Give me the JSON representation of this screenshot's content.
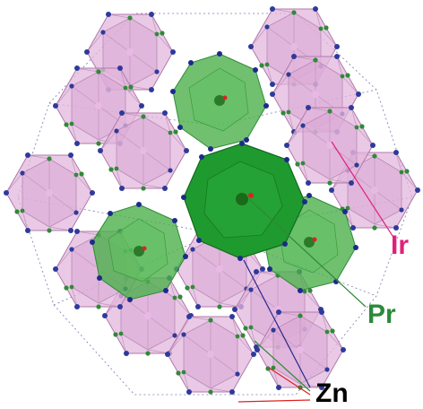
{
  "labels": {
    "ir": "Ir",
    "pr": "Pr",
    "zn": "Zn"
  }
}
